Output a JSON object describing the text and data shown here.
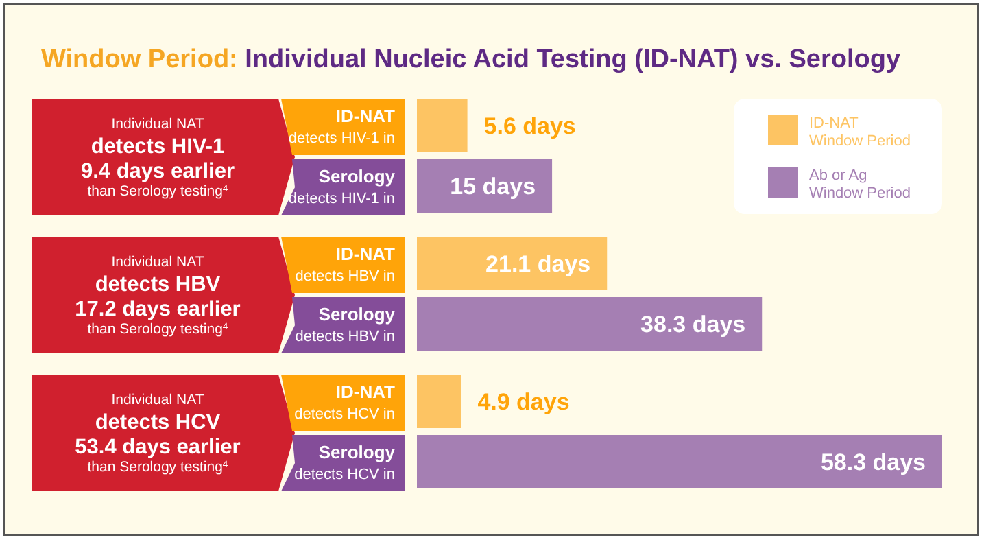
{
  "chart_data": {
    "type": "bar",
    "orientation": "horizontal",
    "title": "Window Period: Individual Nucleic Acid Testing (ID-NAT) vs. Serology",
    "categories": [
      "Individual NAT\ndetects HIV-1\n9.4 days earlier\nthan Serology testing$^{4}$",
      "Individual NAT\ndetects HBV\n17.2 days earlier\nthan Serology testing$^{4}$",
      "Individual NAT\ndetects HCV\n53.4 days earlier\nthan Serology testing$^{4}$"
    ],
    "series": [
      {
        "name": "ID-NAT\nWindow Period",
        "color": "#fdc463",
        "values": [
          5.6,
          21.1,
          4.9
        ],
        "value_labels": [
          "5.6 days",
          "21.1 days",
          "4.9 days"
        ]
      },
      {
        "name": "Ab or Ag\nWindow Period",
        "color": "#a57fb3",
        "values": [
          15,
          38.3,
          58.3
        ],
        "value_labels": [
          "15 days",
          "38.3 days",
          "58.3 days"
        ]
      }
    ],
    "annotations": [
      "ID-NAT\ndetects HIV-1 in",
      "Serology\ndetects HIV-1 in",
      "ID-NAT\ndetects HBV in",
      "Serology\ndetects HBV in",
      "ID-NAT\ndetects HCV in",
      "Serology\ndetects HCV in"
    ],
    "legend": "top right"
  }
}
